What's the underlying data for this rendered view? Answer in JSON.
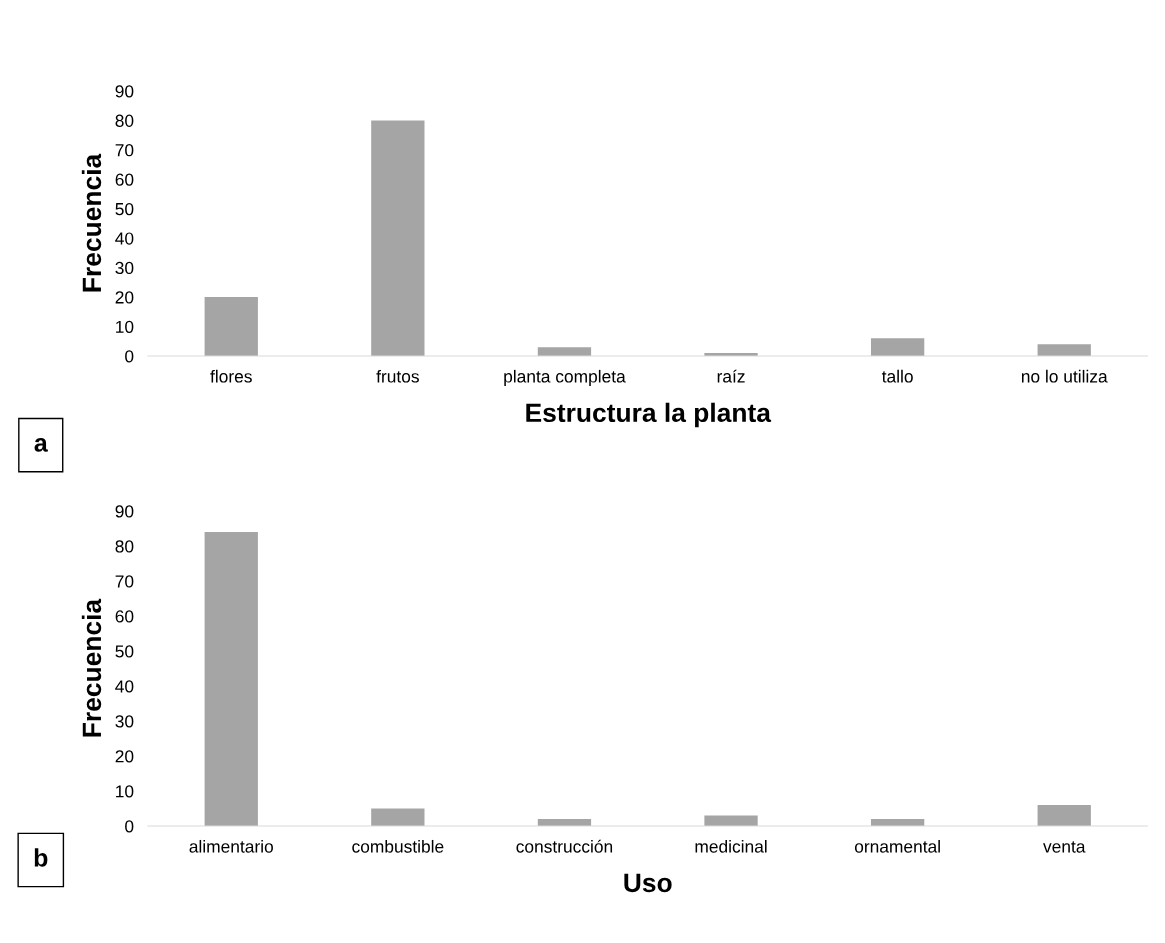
{
  "chart_data": [
    {
      "type": "bar",
      "categories": [
        "flores",
        "frutos",
        "planta completa",
        "raíz",
        "tallo",
        "no lo utiliza"
      ],
      "values": [
        20,
        80,
        3,
        1,
        6,
        4
      ],
      "color": "#a5a5a5",
      "xlabel": "Estructura la planta",
      "ylabel": "Frecuencia",
      "ylim": [
        0,
        90
      ],
      "yticks": [
        0,
        10,
        20,
        30,
        40,
        50,
        60,
        70,
        80,
        90
      ],
      "grid": false,
      "annotations": [
        "a"
      ]
    },
    {
      "type": "bar",
      "categories": [
        "alimentario",
        "combustible",
        "construcción",
        "medicinal",
        "ornamental",
        "venta"
      ],
      "values": [
        84,
        5,
        2,
        3,
        2,
        6
      ],
      "color": "#a5a5a5",
      "xlabel": "Uso",
      "ylabel": "Frecuencia",
      "ylim": [
        0,
        90
      ],
      "yticks": [
        0,
        10,
        20,
        30,
        40,
        50,
        60,
        70,
        80,
        90
      ],
      "grid": false,
      "annotations": [
        "b"
      ]
    }
  ]
}
